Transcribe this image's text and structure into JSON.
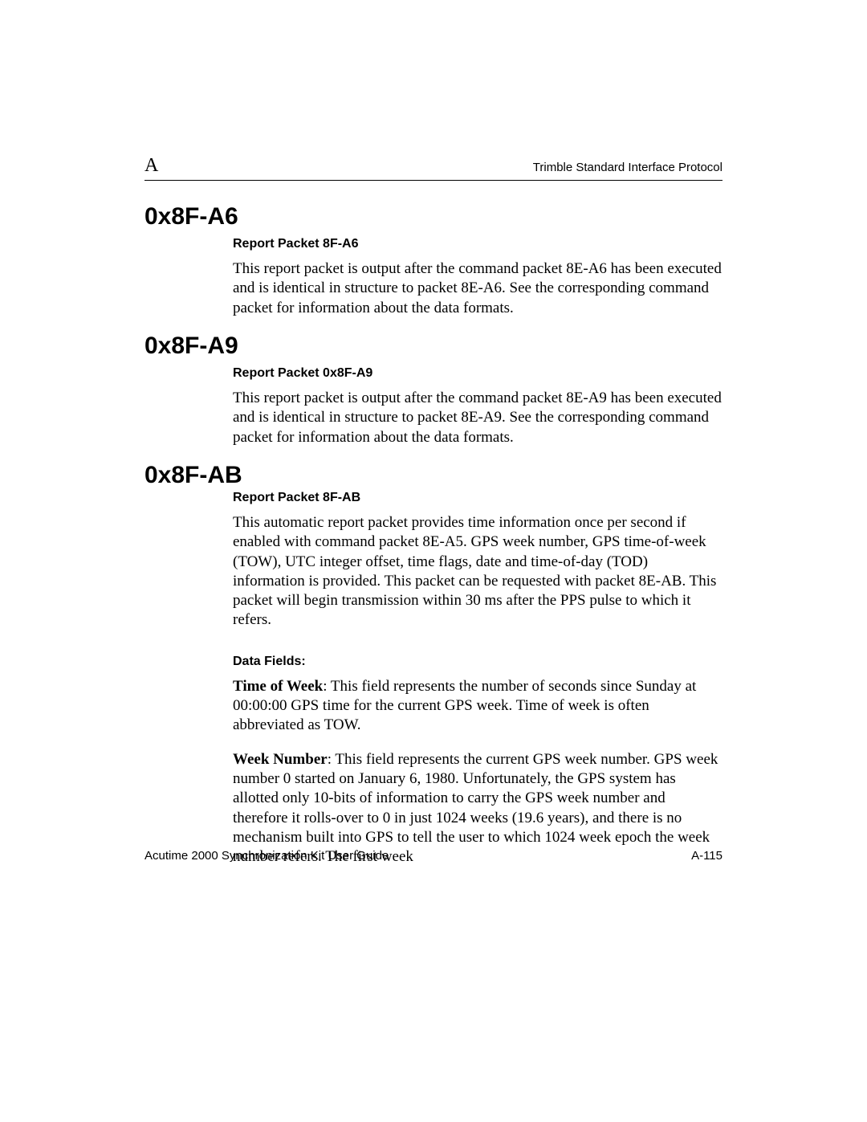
{
  "header": {
    "left": "A",
    "right": "Trimble Standard Interface Protocol"
  },
  "sections": {
    "a6": {
      "heading": "0x8F-A6",
      "subheading": "Report Packet 8F-A6",
      "body": "This report packet is output after the command packet 8E-A6 has been executed and is identical in structure to packet 8E-A6. See the corresponding command packet for information about the data formats."
    },
    "a9": {
      "heading": "0x8F-A9",
      "subheading": "Report Packet 0x8F-A9",
      "body": "This report packet is output after the command packet 8E-A9 has been executed and is identical in structure to packet 8E-A9. See the corresponding command packet for information about the data formats."
    },
    "ab": {
      "heading": "0x8F-AB",
      "subheading": "Report Packet 8F-AB",
      "body": "This automatic report packet provides time information once per second if enabled with command packet 8E-A5.  GPS week number, GPS time-of-week (TOW), UTC integer offset, time flags, date and time-of-day (TOD) information is provided. This packet can be requested with packet 8E-AB. This packet will begin transmission within 30 ms after the PPS pulse to which it refers.",
      "datafields_heading": "Data Fields:",
      "tow_label": "Time of Week",
      "tow_body": ": This field represents the number of seconds since Sunday at 00:00:00 GPS time for the current GPS week. Time of week is often abbreviated as TOW.",
      "wn_label": "Week Number",
      "wn_body": ": This field represents the current GPS week number. GPS week number 0 started on January 6, 1980. Unfortunately, the GPS system has allotted only 10-bits of information to carry the GPS week number and therefore it rolls-over to 0 in just 1024 weeks (19.6 years), and there is no mechanism built into GPS to tell the user to which 1024 week epoch the week number refers. The first week"
    }
  },
  "footer": {
    "left": "Acutime 2000 Synchronization Kit User Guide",
    "right": "A-115"
  }
}
